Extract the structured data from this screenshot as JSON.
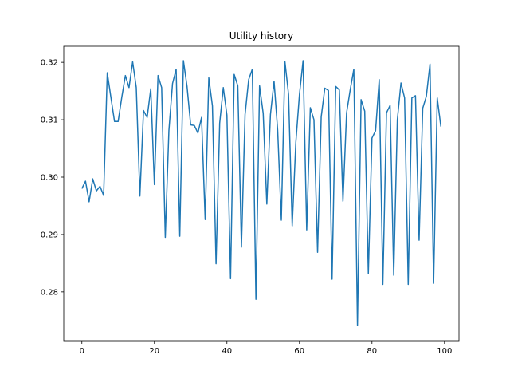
{
  "chart_data": {
    "type": "line",
    "title": "Utility history",
    "xlabel": "",
    "ylabel": "",
    "xlim": [
      -5,
      104
    ],
    "ylim": [
      0.2715,
      0.3228
    ],
    "x_ticks": [
      0,
      20,
      40,
      60,
      80,
      100
    ],
    "x_tick_labels": [
      "0",
      "20",
      "40",
      "60",
      "80",
      "100"
    ],
    "y_ticks": [
      0.28,
      0.29,
      0.3,
      0.31,
      0.32
    ],
    "y_tick_labels": [
      "0.28",
      "0.29",
      "0.30",
      "0.31",
      "0.32"
    ],
    "grid": false,
    "legend": "none",
    "line_color": "#1f77b4",
    "series": [
      {
        "x": [
          0,
          1,
          2,
          3,
          4,
          5,
          6,
          7,
          8,
          9,
          10,
          11,
          12,
          13,
          14,
          15,
          16,
          17,
          18,
          19,
          20,
          21,
          22,
          23,
          24,
          25,
          26,
          27,
          28,
          29,
          30,
          31,
          32,
          33,
          34,
          35,
          36,
          37,
          38,
          39,
          40,
          41,
          42,
          43,
          44,
          45,
          46,
          47,
          48,
          49,
          50,
          51,
          52,
          53,
          54,
          55,
          56,
          57,
          58,
          59,
          60,
          61,
          62,
          63,
          64,
          65,
          66,
          67,
          68,
          69,
          70,
          71,
          72,
          73,
          74,
          75,
          76,
          77,
          78,
          79,
          80,
          81,
          82,
          83,
          84,
          85,
          86,
          87,
          88,
          89,
          90,
          91,
          92,
          93,
          94,
          95,
          96,
          97,
          98,
          99
        ],
        "values": [
          0.298,
          0.2993,
          0.2957,
          0.2997,
          0.2976,
          0.2984,
          0.2968,
          0.3182,
          0.3139,
          0.3097,
          0.3097,
          0.3139,
          0.3177,
          0.3156,
          0.3201,
          0.3156,
          0.2967,
          0.3116,
          0.3104,
          0.3154,
          0.2987,
          0.3177,
          0.3156,
          0.2895,
          0.3081,
          0.3163,
          0.3188,
          0.2897,
          0.3203,
          0.3158,
          0.3091,
          0.309,
          0.3077,
          0.3104,
          0.2926,
          0.3173,
          0.3124,
          0.2849,
          0.3094,
          0.3156,
          0.3108,
          0.2823,
          0.3179,
          0.3159,
          0.2878,
          0.3109,
          0.317,
          0.3188,
          0.2787,
          0.3159,
          0.3111,
          0.2953,
          0.3109,
          0.3167,
          0.3081,
          0.2925,
          0.3201,
          0.3144,
          0.2915,
          0.306,
          0.3144,
          0.3203,
          0.2908,
          0.3121,
          0.31,
          0.2869,
          0.3105,
          0.3155,
          0.3151,
          0.2822,
          0.3158,
          0.3152,
          0.2958,
          0.3112,
          0.3152,
          0.3188,
          0.2742,
          0.3135,
          0.3115,
          0.2832,
          0.3068,
          0.3081,
          0.317,
          0.2813,
          0.3112,
          0.3125,
          0.2829,
          0.31,
          0.3164,
          0.3138,
          0.2813,
          0.3138,
          0.3142,
          0.289,
          0.312,
          0.3141,
          0.3197,
          0.2815,
          0.3138,
          0.3088
        ]
      }
    ]
  }
}
